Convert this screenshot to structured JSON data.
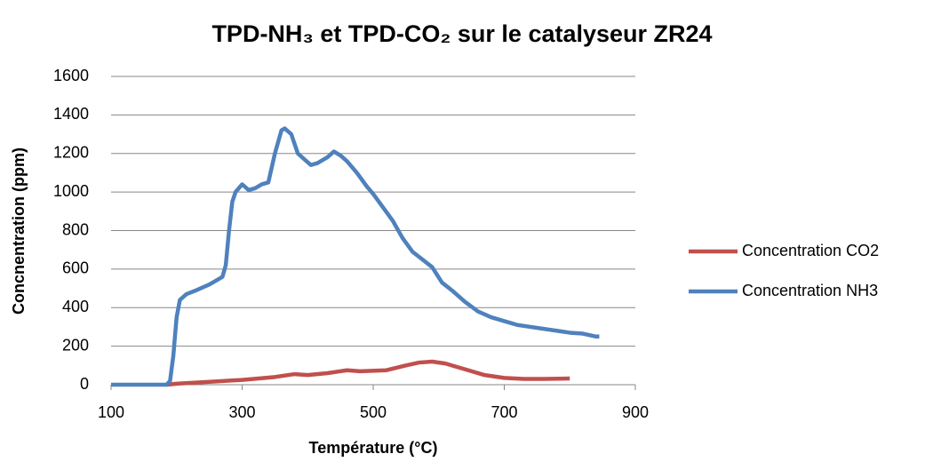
{
  "chart_data": {
    "type": "line",
    "title": "TPD-NH₃ et TPD-CO₂ sur le catalyseur ZR24",
    "x_label": "Température (°C)",
    "y_label": "Concnentration (ppm)",
    "xlim": [
      100,
      900
    ],
    "xticks": [
      100,
      300,
      500,
      700,
      900
    ],
    "ylim": [
      0,
      1600
    ],
    "yticks": [
      0,
      200,
      400,
      600,
      800,
      1000,
      1200,
      1400,
      1600
    ],
    "grid": true,
    "legend": "right",
    "series": [
      {
        "name": "Concentration CO2",
        "color": "#c0504d",
        "x": [
          185,
          200,
          250,
          300,
          350,
          380,
          400,
          430,
          460,
          480,
          520,
          550,
          570,
          590,
          610,
          640,
          670,
          700,
          730,
          760,
          800
        ],
        "values": [
          0,
          5,
          15,
          25,
          40,
          55,
          50,
          60,
          75,
          70,
          75,
          100,
          115,
          120,
          110,
          80,
          50,
          35,
          30,
          30,
          32
        ]
      },
      {
        "name": "Concentration NH3",
        "color": "#4f81bd",
        "x": [
          100,
          150,
          185,
          190,
          195,
          200,
          205,
          215,
          230,
          250,
          260,
          270,
          275,
          280,
          285,
          290,
          300,
          310,
          320,
          330,
          340,
          350,
          360,
          365,
          375,
          385,
          395,
          405,
          415,
          430,
          440,
          450,
          460,
          475,
          490,
          500,
          515,
          530,
          545,
          560,
          575,
          590,
          605,
          620,
          640,
          660,
          680,
          700,
          720,
          740,
          760,
          780,
          800,
          820,
          840,
          845
        ],
        "values": [
          0,
          0,
          0,
          20,
          150,
          350,
          440,
          470,
          490,
          520,
          540,
          560,
          620,
          800,
          950,
          1000,
          1040,
          1010,
          1020,
          1040,
          1050,
          1200,
          1320,
          1330,
          1300,
          1200,
          1170,
          1140,
          1150,
          1180,
          1210,
          1190,
          1160,
          1100,
          1030,
          990,
          920,
          850,
          760,
          690,
          650,
          610,
          530,
          490,
          430,
          380,
          350,
          330,
          310,
          300,
          290,
          280,
          270,
          265,
          250,
          250
        ]
      }
    ]
  }
}
